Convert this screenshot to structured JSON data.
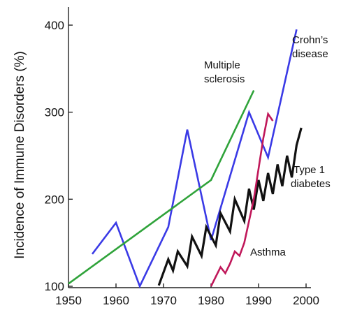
{
  "chart_data": {
    "type": "line",
    "ylabel": "Incidence of Immune Disorders (%)",
    "xlim": [
      1950,
      2000
    ],
    "ylim": [
      100,
      400
    ],
    "xticks": [
      "1950",
      "1960",
      "1970",
      "1980",
      "1990",
      "2000"
    ],
    "yticks": [
      "100",
      "200",
      "300",
      "400"
    ],
    "annotations": [
      "Crohn’s",
      "disease",
      "Multiple",
      "sclerosis",
      "Type 1",
      "diabetes",
      "Asthma"
    ],
    "series": [
      {
        "name": "Crohn’s disease",
        "color": "#3a3ae6",
        "x": [
          1955,
          1960,
          1965,
          1971,
          1975,
          1980,
          1988,
          1992,
          1998
        ],
        "y": [
          137,
          173,
          100,
          168,
          280,
          153,
          300,
          248,
          395
        ]
      },
      {
        "name": "Multiple sclerosis",
        "color": "#2fa33a",
        "x": [
          1950,
          1980,
          1989
        ],
        "y": [
          103,
          222,
          325
        ]
      },
      {
        "name": "Type 1 diabetes",
        "color": "#111111",
        "x": [
          1969,
          1971,
          1972,
          1973,
          1975,
          1976,
          1978,
          1979,
          1981,
          1982,
          1984,
          1985,
          1987,
          1988,
          1989,
          1990,
          1991,
          1992,
          1993,
          1994,
          1995,
          1996,
          1997,
          1998,
          1999
        ],
        "y": [
          101,
          131,
          118,
          140,
          123,
          157,
          135,
          168,
          147,
          184,
          163,
          200,
          175,
          212,
          188,
          222,
          198,
          230,
          206,
          240,
          215,
          250,
          225,
          262,
          282
        ]
      },
      {
        "name": "Asthma",
        "color": "#c0185a",
        "x": [
          1980,
          1982,
          1983,
          1984,
          1985,
          1986,
          1987,
          1989,
          1990,
          1991,
          1992,
          1993
        ],
        "y": [
          100,
          122,
          115,
          126,
          140,
          135,
          150,
          200,
          235,
          270,
          298,
          290
        ]
      }
    ]
  }
}
